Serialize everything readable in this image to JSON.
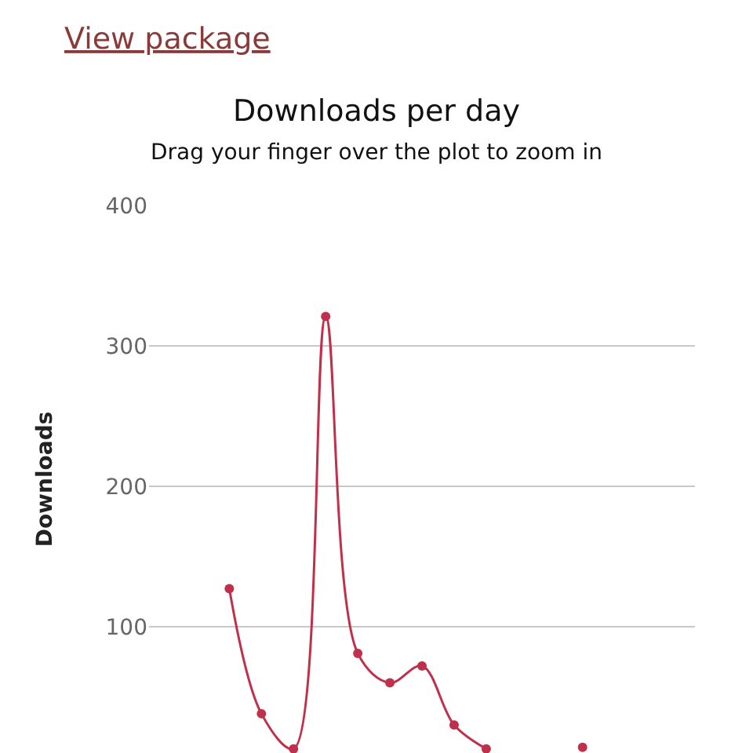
{
  "chart_data": {
    "type": "line",
    "title": "Downloads per day",
    "subtitle": "Drag your finger over the plot to zoom in",
    "ylabel": "Downloads",
    "annotations": [
      "View package"
    ],
    "categories": [
      null,
      null,
      null,
      null,
      null,
      null,
      null,
      null,
      null,
      null,
      null,
      null,
      null,
      null,
      null,
      null,
      null
    ],
    "series": [
      {
        "color": "#c0304a",
        "values": [
          null,
          null,
          127,
          38,
          13,
          321,
          81,
          60,
          72,
          30,
          13,
          null,
          null,
          14,
          null,
          null,
          null
        ]
      }
    ],
    "ylim": [
      10,
      400
    ],
    "yticks": [
      100,
      200,
      300,
      400
    ],
    "grid": "y",
    "marker": "circle",
    "line_style": "solid"
  }
}
